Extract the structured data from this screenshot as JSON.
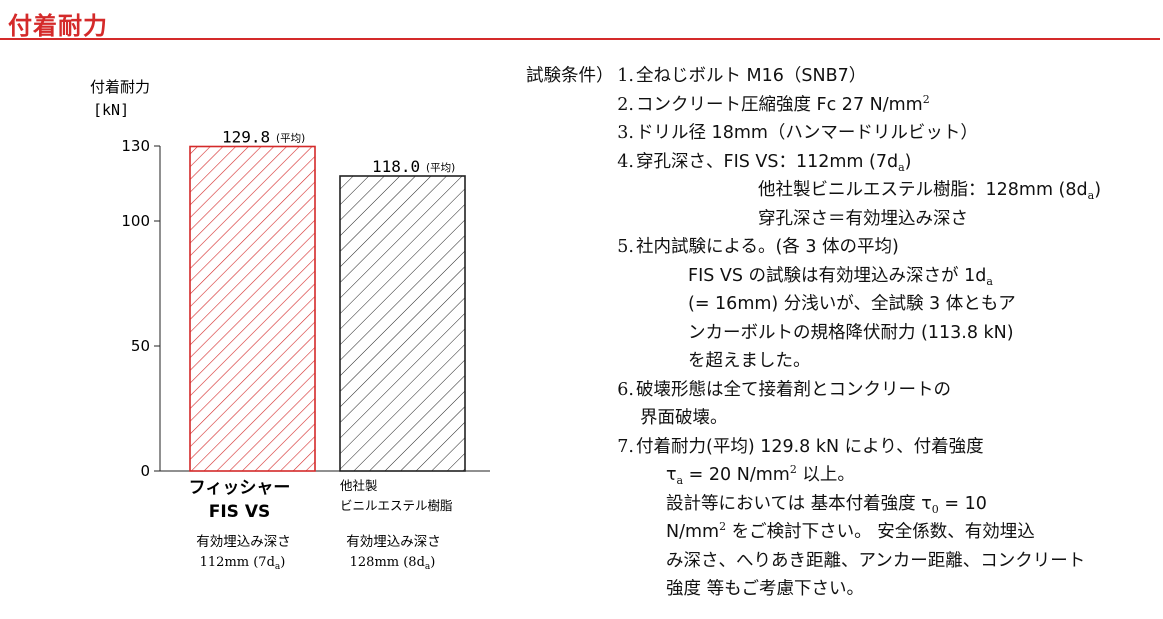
{
  "page": {
    "title": "付着耐力"
  },
  "chart_data": {
    "type": "bar",
    "ylabel": "付着耐力",
    "yunit": "[kN]",
    "yticks": [
      0,
      50,
      100,
      130
    ],
    "ylim": [
      0,
      130
    ],
    "bars": [
      {
        "value": 129.8,
        "value_text": "129.8",
        "note": "(平均)",
        "name_lines": [
          "フィッシャー",
          "FIS VS"
        ],
        "sub_lines": [
          "有効埋込み深さ",
          "112mm (7d",
          "a",
          ")"
        ],
        "color": "#d42a2a",
        "hatch": "hatched-red"
      },
      {
        "value": 118.0,
        "value_text": "118.0",
        "note": "(平均)",
        "name_lines": [
          "他社製",
          "ビニルエステル樹脂"
        ],
        "sub_lines": [
          "有効埋込み深さ",
          "128mm (8d",
          "a",
          ")"
        ],
        "color": "#222222",
        "hatch": "hatched-black"
      }
    ]
  },
  "conditions": {
    "heading": "試験条件）",
    "lines": [
      {
        "num": "1.",
        "parts": [
          "全ねじボルト M16（SNB7）"
        ]
      },
      {
        "num": "2.",
        "parts": [
          "コンクリート圧縮強度 Fc 27 N/mm",
          "2"
        ]
      },
      {
        "num": "3.",
        "parts": [
          "ドリル径 18mm（ハンマードリルビット）"
        ]
      },
      {
        "num": "4.",
        "parts": [
          "穿孔深さ、FIS VS：112mm (7d",
          "a",
          ")"
        ]
      },
      {
        "num": "",
        "parts": [
          "他社製ビニルエステル樹脂：128mm (8d",
          "a",
          ")"
        ]
      },
      {
        "num": "",
        "parts": [
          "穿孔深さ＝有効埋込み深さ"
        ]
      },
      {
        "num": "5.",
        "parts": [
          "社内試験による。(各 3 体の平均)"
        ]
      },
      {
        "num": "",
        "parts": [
          "FIS VS の試験は有効埋込み深さが 1d",
          "a"
        ]
      },
      {
        "num": "",
        "parts": [
          "(= 16mm) 分浅いが、全試験 3 体ともア"
        ]
      },
      {
        "num": "",
        "parts": [
          "ンカーボルトの規格降伏耐力 (113.8 kN)"
        ]
      },
      {
        "num": "",
        "parts": [
          "を超えました。"
        ]
      },
      {
        "num": "6.",
        "parts": [
          "破壊形態は全て接着剤とコンクリートの"
        ]
      },
      {
        "num": "",
        "parts": [
          "界面破壊。"
        ]
      },
      {
        "num": "7.",
        "parts": [
          "付着耐力(平均) 129.8 kN により、付着強度"
        ]
      },
      {
        "num": "",
        "parts": [
          "τ",
          "a",
          " = 20 N/mm",
          "2",
          " 以上。"
        ]
      },
      {
        "num": "",
        "parts": [
          "設計等においては 基本付着強度 τ",
          "0",
          " = 10"
        ]
      },
      {
        "num": "",
        "parts": [
          "N/mm",
          "2",
          " をご検討下さい。 安全係数、有効埋込"
        ]
      },
      {
        "num": "",
        "parts": [
          "み深さ、へりあき距離、アンカー距離、コンクリート"
        ]
      },
      {
        "num": "",
        "parts": [
          "強度 等もご考慮下さい。"
        ]
      }
    ]
  }
}
